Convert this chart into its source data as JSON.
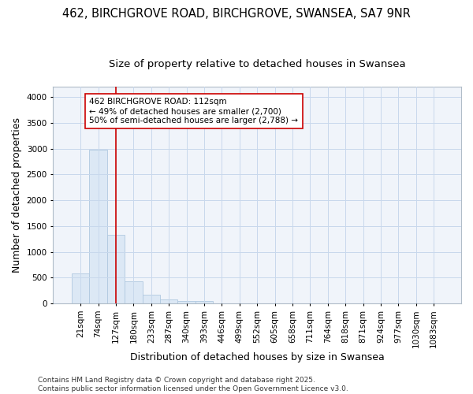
{
  "title_line1": "462, BIRCHGROVE ROAD, BIRCHGROVE, SWANSEA, SA7 9NR",
  "title_line2": "Size of property relative to detached houses in Swansea",
  "xlabel": "Distribution of detached houses by size in Swansea",
  "ylabel": "Number of detached properties",
  "bar_labels": [
    "21sqm",
    "74sqm",
    "127sqm",
    "180sqm",
    "233sqm",
    "287sqm",
    "340sqm",
    "393sqm",
    "446sqm",
    "499sqm",
    "552sqm",
    "605sqm",
    "658sqm",
    "711sqm",
    "764sqm",
    "818sqm",
    "871sqm",
    "924sqm",
    "977sqm",
    "1030sqm",
    "1083sqm"
  ],
  "bar_values": [
    590,
    2975,
    1335,
    425,
    170,
    75,
    48,
    42,
    0,
    0,
    0,
    0,
    0,
    0,
    0,
    0,
    0,
    0,
    0,
    0,
    0
  ],
  "bar_color": "#dce8f5",
  "bar_edgecolor": "#b0c8e0",
  "grid_color": "#c8d8ec",
  "background_color": "#ffffff",
  "plot_bg_color": "#f0f4fa",
  "vline_color": "#cc0000",
  "annotation_text": "462 BIRCHGROVE ROAD: 112sqm\n← 49% of detached houses are smaller (2,700)\n50% of semi-detached houses are larger (2,788) →",
  "annotation_box_facecolor": "#ffffff",
  "annotation_box_edgecolor": "#cc0000",
  "ylim": [
    0,
    4200
  ],
  "yticks": [
    0,
    500,
    1000,
    1500,
    2000,
    2500,
    3000,
    3500,
    4000
  ],
  "footer_line1": "Contains HM Land Registry data © Crown copyright and database right 2025.",
  "footer_line2": "Contains public sector information licensed under the Open Government Licence v3.0.",
  "title_fontsize": 10.5,
  "subtitle_fontsize": 9.5,
  "axis_label_fontsize": 9,
  "tick_fontsize": 7.5,
  "annotation_fontsize": 7.5,
  "footer_fontsize": 6.5,
  "vline_x": 2.0
}
